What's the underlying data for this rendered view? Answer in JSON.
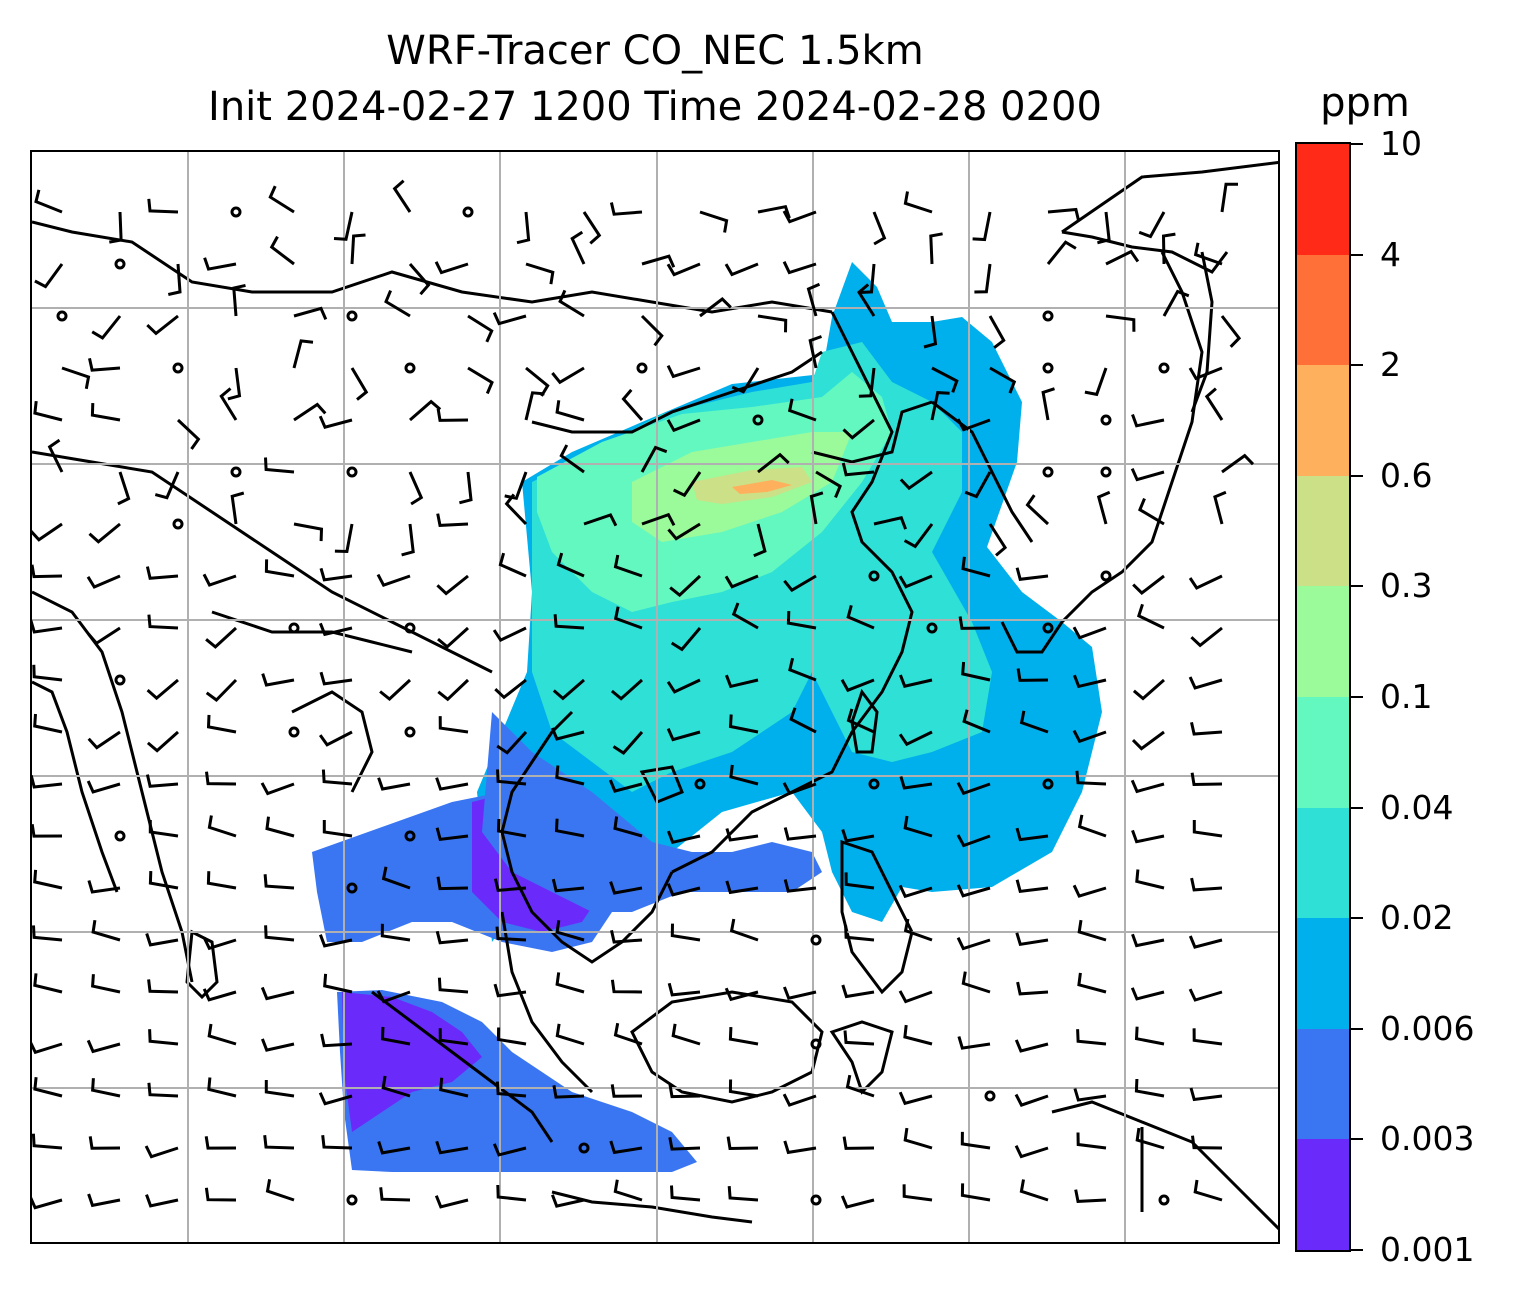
{
  "title": {
    "line1": "WRF-Tracer CO_NEC 1.5km",
    "line2": "Init 2024-02-27 1200 Time 2024-02-28 0200"
  },
  "colorbar": {
    "unit": "ppm",
    "levels": [
      "0.001",
      "0.003",
      "0.006",
      "0.02",
      "0.04",
      "0.1",
      "0.3",
      "0.6",
      "2",
      "4",
      "10"
    ],
    "colors": [
      "#6a2bfa",
      "#3a76f2",
      "#00b0ec",
      "#2fe0d6",
      "#63f8c0",
      "#9bfa9a",
      "#cce088",
      "#ffb05c",
      "#ff6f38",
      "#ff2a18"
    ]
  },
  "map": {
    "gridline_color": "#b0b0b0",
    "coastline_color": "#000000",
    "wind_barb_color": "#000000",
    "background": "#ffffff"
  }
}
